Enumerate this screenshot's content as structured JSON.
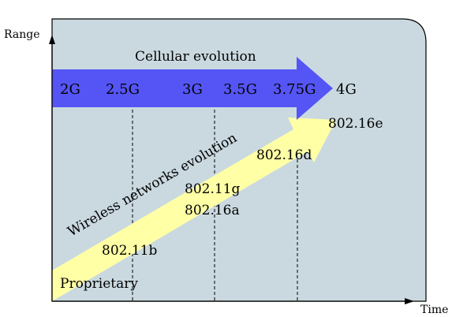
{
  "axes": {
    "y_label": "Range",
    "x_label": "Time"
  },
  "cellular": {
    "title": "Cellular evolution",
    "generations": [
      "2G",
      "2.5G",
      "3G",
      "3.5G",
      "3.75G",
      "4G"
    ]
  },
  "wireless": {
    "title": "Wireless networks evolution",
    "standards": [
      "Proprietary",
      "802.11b",
      "802.11g",
      "802.16a",
      "802.16d",
      "802.16e"
    ]
  },
  "colors": {
    "panel": "#cad9e0",
    "cellular_arrow": "#5555f5",
    "wireless_arrow": "#ffffa6",
    "axis": "#000000"
  }
}
